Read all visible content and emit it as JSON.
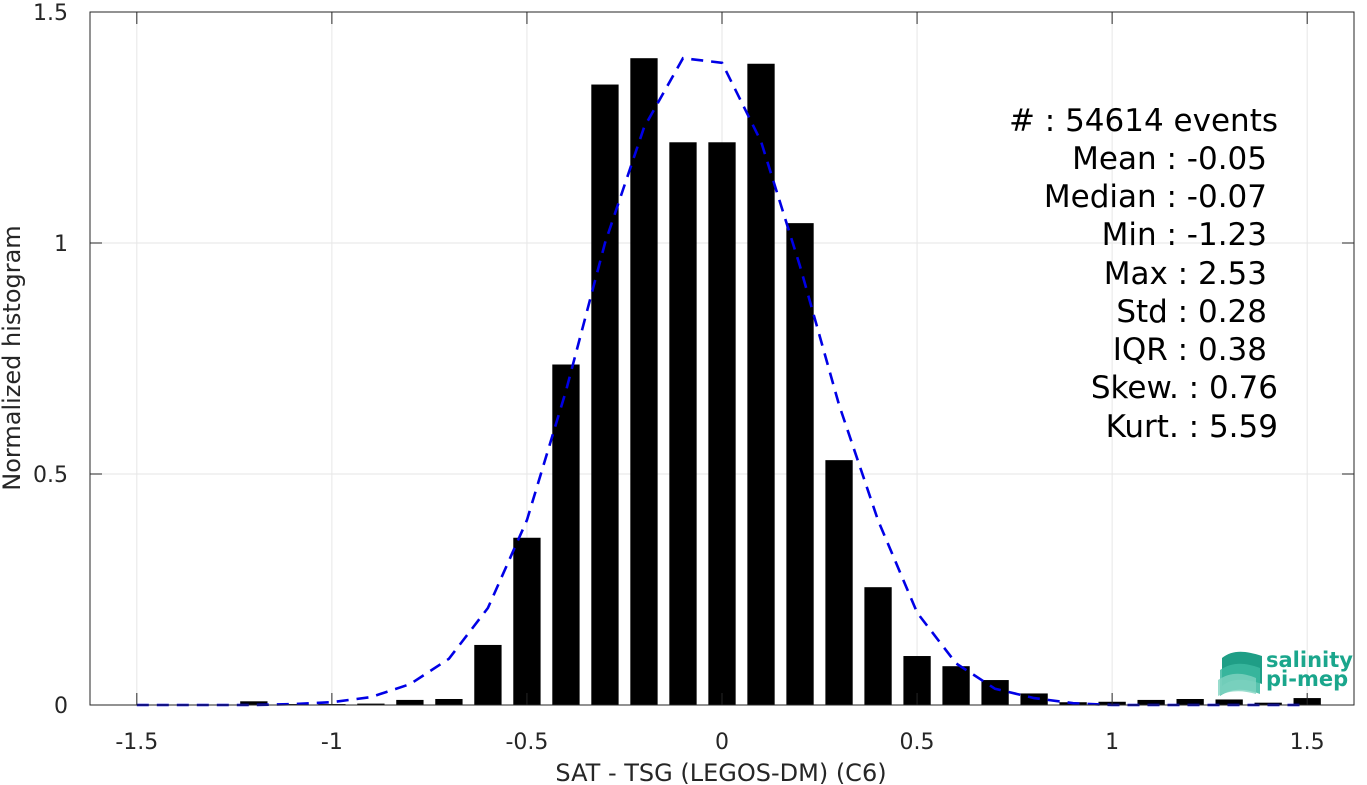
{
  "chart_data": {
    "type": "bar",
    "xlabel": "SAT - TSG (LEGOS-DM) (C6)",
    "ylabel": "Normalized histogram",
    "xlim": [
      -1.62,
      1.62
    ],
    "ylim": [
      0,
      1.5
    ],
    "xticks": [
      -1.5,
      -1,
      -0.5,
      0,
      0.5,
      1,
      1.5
    ],
    "xtick_labels": [
      "-1.5",
      "-1",
      "-0.5",
      "0",
      "0.5",
      "1",
      "1.5"
    ],
    "yticks": [
      0,
      0.5,
      1,
      1.5
    ],
    "ytick_labels": [
      "0",
      "0.5",
      "1",
      "1.5"
    ],
    "grid": true,
    "bar_width": 0.07,
    "bar_color": "#000000",
    "curve_color": "#0000e6",
    "series": [
      {
        "type": "bar",
        "x": [
          -1.2,
          -1.1,
          -1.0,
          -0.9,
          -0.8,
          -0.7,
          -0.6,
          -0.5,
          -0.4,
          -0.3,
          -0.2,
          -0.1,
          0.0,
          0.1,
          0.2,
          0.3,
          0.4,
          0.5,
          0.6,
          0.7,
          0.8,
          0.9,
          1.0,
          1.1,
          1.2,
          1.3,
          1.4,
          1.5
        ],
        "values": [
          0.008,
          0.002,
          0.002,
          0.003,
          0.011,
          0.013,
          0.13,
          0.362,
          0.737,
          1.343,
          1.4,
          1.218,
          1.218,
          1.388,
          1.043,
          0.53,
          0.255,
          0.106,
          0.084,
          0.054,
          0.025,
          0.006,
          0.007,
          0.011,
          0.013,
          0.012,
          0.005,
          0.015
        ]
      },
      {
        "type": "line",
        "style": "dashed",
        "x": [
          -1.5,
          -1.4,
          -1.3,
          -1.2,
          -1.1,
          -1.0,
          -0.9,
          -0.8,
          -0.7,
          -0.6,
          -0.5,
          -0.4,
          -0.3,
          -0.2,
          -0.1,
          0.0,
          0.1,
          0.2,
          0.3,
          0.4,
          0.5,
          0.6,
          0.7,
          0.8,
          0.9,
          1.0,
          1.1,
          1.2,
          1.3,
          1.4,
          1.5
        ],
        "values": [
          0.0,
          0.0,
          0.0,
          0.0,
          0.002,
          0.006,
          0.017,
          0.045,
          0.1,
          0.21,
          0.4,
          0.68,
          1.0,
          1.25,
          1.4,
          1.39,
          1.22,
          0.95,
          0.65,
          0.4,
          0.2,
          0.09,
          0.035,
          0.015,
          0.004,
          0.0,
          0.0,
          0.0,
          0.0,
          0.0,
          0.0
        ]
      }
    ]
  },
  "stats": {
    "events": "#  : 54614 events",
    "mean": "Mean : -0.05",
    "median": "Median : -0.07",
    "min": "Min : -1.23",
    "max": "Max : 2.53",
    "std": "Std : 0.28",
    "iqr": "IQR : 0.38",
    "skew": "Skew. : 0.76",
    "kurt": "Kurt. : 5.59"
  },
  "logo": {
    "line1": "salinity",
    "line2": "pi-mep",
    "color": "#1aa68c"
  }
}
